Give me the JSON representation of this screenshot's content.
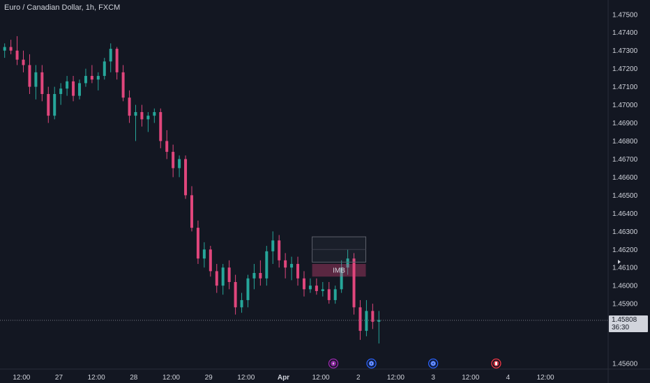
{
  "header": {
    "title": "Euro / Canadian Dollar, 1h, FXCM"
  },
  "colors": {
    "background": "#131722",
    "up": "#26a69a",
    "down": "#e0467c",
    "grid_text": "#d1d4dc"
  },
  "current_price": {
    "value": "1.45808",
    "countdown": "36:30"
  },
  "zone": {
    "label": "IMB"
  },
  "events": [
    {
      "icon": "lightning-icon",
      "x": 53.0,
      "color": "#9c27b0"
    },
    {
      "icon": "globe-icon",
      "x": 59.1,
      "color": "#2962ff"
    },
    {
      "icon": "globe-icon",
      "x": 69.0,
      "color": "#2962ff"
    },
    {
      "icon": "canada-flag-icon",
      "x": 79.1,
      "color": "#f23645"
    }
  ],
  "chart_data": {
    "type": "candlestick",
    "title": "Euro / Canadian Dollar, 1h, FXCM",
    "ylim": [
      1.4555,
      1.4758
    ],
    "y_ticks": [
      1.475,
      1.474,
      1.473,
      1.472,
      1.471,
      1.47,
      1.469,
      1.468,
      1.467,
      1.466,
      1.465,
      1.464,
      1.463,
      1.462,
      1.461,
      1.46,
      1.459,
      1.4557
    ],
    "y_tick_labels": [
      "1.47500",
      "1.47400",
      "1.47300",
      "1.47200",
      "1.47100",
      "1.47000",
      "1.46900",
      "1.46800",
      "1.46700",
      "1.46600",
      "1.46500",
      "1.46400",
      "1.46300",
      "1.46200",
      "1.46100",
      "1.46000",
      "1.45900",
      "1.45600"
    ],
    "x_tick_labels": [
      {
        "x": 3,
        "label": "12:00"
      },
      {
        "x": 9,
        "label": "27"
      },
      {
        "x": 15,
        "label": "12:00"
      },
      {
        "x": 21,
        "label": "28"
      },
      {
        "x": 27,
        "label": "12:00"
      },
      {
        "x": 33,
        "label": "29"
      },
      {
        "x": 39,
        "label": "12:00"
      },
      {
        "x": 45,
        "label": "Apr",
        "bold": true
      },
      {
        "x": 51,
        "label": "12:00"
      },
      {
        "x": 57,
        "label": "2"
      },
      {
        "x": 63,
        "label": "12:00"
      },
      {
        "x": 69,
        "label": "3"
      },
      {
        "x": 75,
        "label": "12:00"
      },
      {
        "x": 81,
        "label": "4"
      },
      {
        "x": 87,
        "label": "12:00"
      }
    ],
    "xlim": [
      0,
      97.5
    ],
    "candles": [
      [
        1.473,
        1.4734,
        1.4726,
        1.4732
      ],
      [
        1.4732,
        1.4736,
        1.4728,
        1.473
      ],
      [
        1.473,
        1.4738,
        1.4722,
        1.4725
      ],
      [
        1.4725,
        1.473,
        1.4718,
        1.4722
      ],
      [
        1.4722,
        1.4728,
        1.4706,
        1.471
      ],
      [
        1.471,
        1.4722,
        1.4703,
        1.4718
      ],
      [
        1.4718,
        1.4722,
        1.4702,
        1.4706
      ],
      [
        1.4706,
        1.471,
        1.469,
        1.4694
      ],
      [
        1.4694,
        1.471,
        1.4692,
        1.4706
      ],
      [
        1.4706,
        1.4712,
        1.47,
        1.4709
      ],
      [
        1.4709,
        1.4716,
        1.4705,
        1.4713
      ],
      [
        1.4713,
        1.4716,
        1.4702,
        1.4705
      ],
      [
        1.4705,
        1.4714,
        1.4703,
        1.4712
      ],
      [
        1.4712,
        1.472,
        1.471,
        1.4716
      ],
      [
        1.4716,
        1.4722,
        1.4712,
        1.4714
      ],
      [
        1.4714,
        1.4718,
        1.4708,
        1.4716
      ],
      [
        1.4716,
        1.4726,
        1.4714,
        1.4724
      ],
      [
        1.4724,
        1.4734,
        1.4718,
        1.4731
      ],
      [
        1.4731,
        1.4732,
        1.4714,
        1.4718
      ],
      [
        1.4718,
        1.4722,
        1.4702,
        1.4704
      ],
      [
        1.4704,
        1.4708,
        1.469,
        1.4694
      ],
      [
        1.4694,
        1.47,
        1.468,
        1.4696
      ],
      [
        1.4696,
        1.47,
        1.4688,
        1.4692
      ],
      [
        1.4692,
        1.4696,
        1.4685,
        1.4694
      ],
      [
        1.4694,
        1.4698,
        1.469,
        1.4696
      ],
      [
        1.4696,
        1.4698,
        1.4676,
        1.468
      ],
      [
        1.468,
        1.4686,
        1.467,
        1.4674
      ],
      [
        1.4674,
        1.4678,
        1.466,
        1.4665
      ],
      [
        1.4665,
        1.4672,
        1.466,
        1.467
      ],
      [
        1.467,
        1.4672,
        1.4648,
        1.465
      ],
      [
        1.465,
        1.4655,
        1.463,
        1.4632
      ],
      [
        1.4632,
        1.4636,
        1.4612,
        1.4615
      ],
      [
        1.4615,
        1.4624,
        1.461,
        1.462
      ],
      [
        1.462,
        1.4622,
        1.4605,
        1.4608
      ],
      [
        1.4608,
        1.4612,
        1.4596,
        1.46
      ],
      [
        1.46,
        1.4612,
        1.4595,
        1.461
      ],
      [
        1.461,
        1.4614,
        1.4598,
        1.4602
      ],
      [
        1.4602,
        1.4606,
        1.4584,
        1.4588
      ],
      [
        1.4588,
        1.4596,
        1.4585,
        1.4592
      ],
      [
        1.4592,
        1.4606,
        1.4588,
        1.4604
      ],
      [
        1.4604,
        1.4612,
        1.4598,
        1.4607
      ],
      [
        1.4607,
        1.4614,
        1.46,
        1.4604
      ],
      [
        1.4604,
        1.4622,
        1.46,
        1.4619
      ],
      [
        1.4619,
        1.463,
        1.4612,
        1.4625
      ],
      [
        1.4625,
        1.4628,
        1.461,
        1.4614
      ],
      [
        1.4614,
        1.4618,
        1.4604,
        1.461
      ],
      [
        1.461,
        1.4616,
        1.4603,
        1.4612
      ],
      [
        1.4612,
        1.4616,
        1.46,
        1.4604
      ],
      [
        1.4604,
        1.4608,
        1.4594,
        1.4598
      ],
      [
        1.4598,
        1.4604,
        1.4596,
        1.46
      ],
      [
        1.46,
        1.4604,
        1.4595,
        1.4597
      ],
      [
        1.4597,
        1.4602,
        1.4594,
        1.4598
      ],
      [
        1.4598,
        1.4602,
        1.459,
        1.4592
      ],
      [
        1.4592,
        1.46,
        1.459,
        1.4598
      ],
      [
        1.4598,
        1.4614,
        1.4596,
        1.461
      ],
      [
        1.461,
        1.462,
        1.4606,
        1.4615
      ],
      [
        1.4615,
        1.4618,
        1.4584,
        1.4588
      ],
      [
        1.4588,
        1.4592,
        1.457,
        1.4575
      ],
      [
        1.4575,
        1.4592,
        1.4572,
        1.4586
      ],
      [
        1.4586,
        1.459,
        1.4576,
        1.458
      ],
      [
        1.458,
        1.4586,
        1.4568,
        1.4581
      ]
    ],
    "zone_box": {
      "x0": 49.6,
      "x1": 58.2,
      "top": 1.4627,
      "bottom": 1.4613
    },
    "imb_zone": {
      "x0": 49.6,
      "x1": 58.2,
      "top": 1.4612,
      "bottom": 1.4605,
      "label": "IMB"
    },
    "last_price_line": 1.45808
  }
}
